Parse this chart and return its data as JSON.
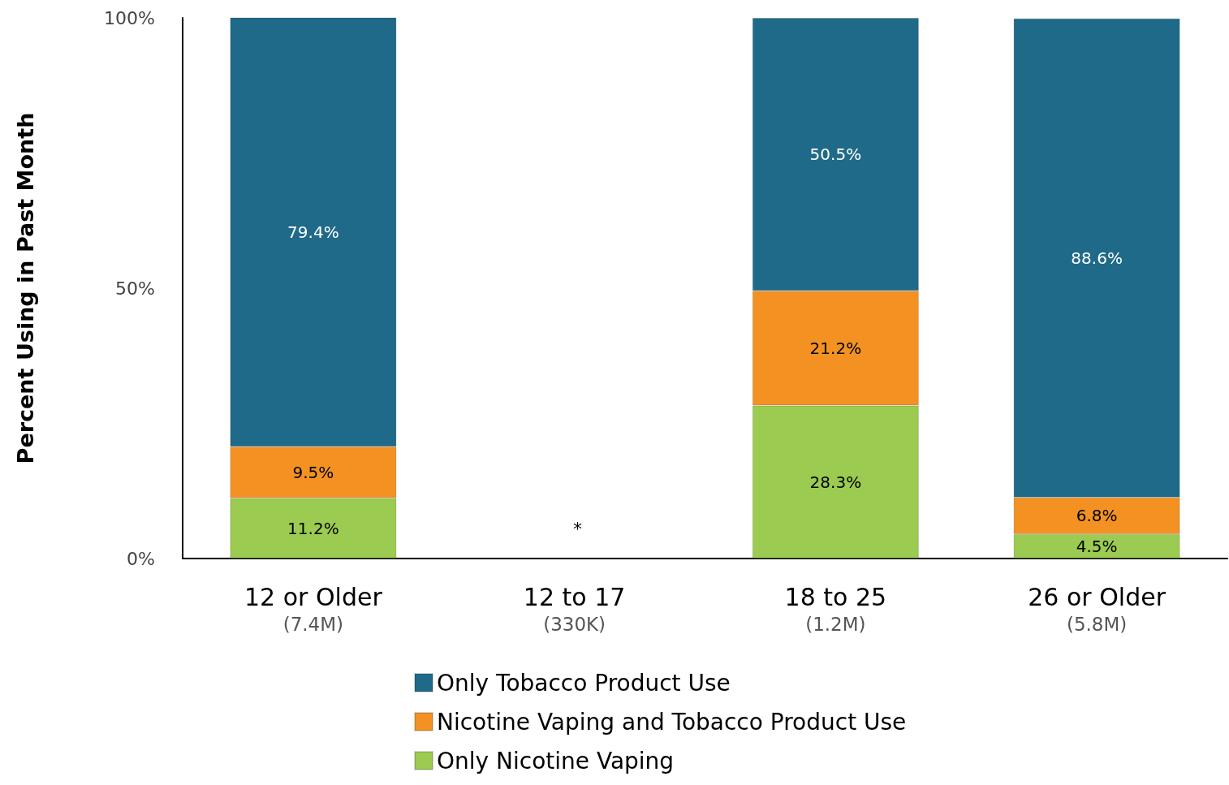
{
  "chart_data": {
    "type": "bar",
    "stacked": true,
    "ylabel": "Percent Using in Past Month",
    "categories": [
      "12 or Older\n(7.4M)",
      "12 to 17\n(330K)",
      "18 to 25\n(1.2M)",
      "26 or Older\n(5.8M)"
    ],
    "series": [
      {
        "name": "Only Nicotine Vaping",
        "color": "#9bcb50",
        "values": [
          11.2,
          null,
          28.3,
          4.5
        ],
        "value_labels": [
          "11.2%",
          null,
          "28.3%",
          "4.5%"
        ]
      },
      {
        "name": "Nicotine Vaping and Tobacco Product Use",
        "color": "#f39222",
        "values": [
          9.5,
          null,
          21.2,
          6.8
        ],
        "value_labels": [
          "9.5%",
          null,
          "21.2%",
          "6.8%"
        ]
      },
      {
        "name": "Only Tobacco Product Use",
        "color": "#1f6a89",
        "values": [
          79.4,
          null,
          50.5,
          88.6
        ],
        "value_labels": [
          "79.4%",
          null,
          "50.5%",
          "88.6%"
        ]
      }
    ],
    "ylim": [
      0,
      100
    ],
    "yticks": [
      {
        "value": 0,
        "label": "0%"
      },
      {
        "value": 50,
        "label": "50%"
      },
      {
        "value": 100,
        "label": "100%"
      }
    ],
    "grid": false,
    "legend": "bottom",
    "annotations": [
      "*"
    ]
  }
}
